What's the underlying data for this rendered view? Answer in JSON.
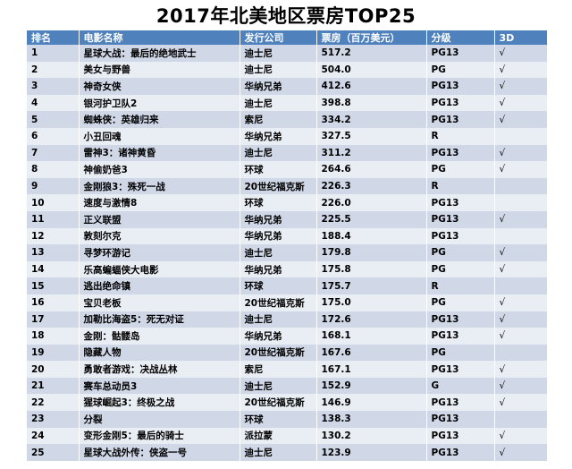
{
  "title": "2017年北美地区票房TOP25",
  "table": {
    "headers": [
      "排名",
      "电影名称",
      "发行公司",
      "票房（百万美元）",
      "分级",
      "3D"
    ],
    "rows": [
      {
        "rank": "1",
        "movie": "星球大战：最后的绝地武士",
        "distributor": "迪士尼",
        "gross": "517.2",
        "rating": "PG13",
        "three_d": "√"
      },
      {
        "rank": "2",
        "movie": "美女与野兽",
        "distributor": "迪士尼",
        "gross": "504.0",
        "rating": "PG",
        "three_d": "√"
      },
      {
        "rank": "3",
        "movie": "神奇女侠",
        "distributor": "华纳兄弟",
        "gross": "412.6",
        "rating": "PG13",
        "three_d": "√"
      },
      {
        "rank": "4",
        "movie": "银河护卫队2",
        "distributor": "迪士尼",
        "gross": "398.8",
        "rating": "PG13",
        "three_d": "√"
      },
      {
        "rank": "5",
        "movie": "蜘蛛侠：英雄归来",
        "distributor": "索尼",
        "gross": "334.2",
        "rating": "PG13",
        "three_d": "√"
      },
      {
        "rank": "6",
        "movie": "小丑回魂",
        "distributor": "华纳兄弟",
        "gross": "327.5",
        "rating": "R",
        "three_d": ""
      },
      {
        "rank": "7",
        "movie": "雷神3：诸神黄昏",
        "distributor": "迪士尼",
        "gross": "311.2",
        "rating": "PG13",
        "three_d": "√"
      },
      {
        "rank": "8",
        "movie": "神偷奶爸3",
        "distributor": "环球",
        "gross": "264.6",
        "rating": "PG",
        "three_d": "√"
      },
      {
        "rank": "9",
        "movie": "金刚狼3：殊死一战",
        "distributor": "20世纪福克斯",
        "gross": "226.3",
        "rating": "R",
        "three_d": ""
      },
      {
        "rank": "10",
        "movie": "速度与激情8",
        "distributor": "环球",
        "gross": "226.0",
        "rating": "PG13",
        "three_d": ""
      },
      {
        "rank": "11",
        "movie": "正义联盟",
        "distributor": "华纳兄弟",
        "gross": "225.5",
        "rating": "PG13",
        "three_d": "√"
      },
      {
        "rank": "12",
        "movie": "敦刻尔克",
        "distributor": "华纳兄弟",
        "gross": "188.4",
        "rating": "PG13",
        "three_d": ""
      },
      {
        "rank": "13",
        "movie": "寻梦环游记",
        "distributor": "迪士尼",
        "gross": "179.8",
        "rating": "PG",
        "three_d": "√"
      },
      {
        "rank": "14",
        "movie": "乐高蝙蝠侠大电影",
        "distributor": "华纳兄弟",
        "gross": "175.8",
        "rating": "PG",
        "three_d": "√"
      },
      {
        "rank": "15",
        "movie": "逃出绝命镇",
        "distributor": "环球",
        "gross": "175.7",
        "rating": "R",
        "three_d": ""
      },
      {
        "rank": "16",
        "movie": "宝贝老板",
        "distributor": "20世纪福克斯",
        "gross": "175.0",
        "rating": "PG",
        "three_d": "√"
      },
      {
        "rank": "17",
        "movie": "加勒比海盗5：死无对证",
        "distributor": "迪士尼",
        "gross": "172.6",
        "rating": "PG13",
        "three_d": "√"
      },
      {
        "rank": "18",
        "movie": "金刚：骷髅岛",
        "distributor": "华纳兄弟",
        "gross": "168.1",
        "rating": "PG13",
        "three_d": "√"
      },
      {
        "rank": "19",
        "movie": "隐藏人物",
        "distributor": "20世纪福克斯",
        "gross": "167.6",
        "rating": "PG",
        "three_d": ""
      },
      {
        "rank": "20",
        "movie": "勇敢者游戏：决战丛林",
        "distributor": "索尼",
        "gross": "167.1",
        "rating": "PG13",
        "three_d": "√"
      },
      {
        "rank": "21",
        "movie": "赛车总动员3",
        "distributor": "迪士尼",
        "gross": "152.9",
        "rating": "G",
        "three_d": "√"
      },
      {
        "rank": "22",
        "movie": "猩球崛起3：终极之战",
        "distributor": "20世纪福克斯",
        "gross": "146.9",
        "rating": "PG13",
        "three_d": "√"
      },
      {
        "rank": "23",
        "movie": "分裂",
        "distributor": "环球",
        "gross": "138.3",
        "rating": "PG13",
        "three_d": ""
      },
      {
        "rank": "24",
        "movie": "变形金刚5：最后的骑士",
        "distributor": "派拉蒙",
        "gross": "130.2",
        "rating": "PG13",
        "three_d": "√"
      },
      {
        "rank": "25",
        "movie": "星球大战外传：侠盗一号",
        "distributor": "迪士尼",
        "gross": "123.9",
        "rating": "PG13",
        "three_d": "√"
      }
    ]
  },
  "colors": {
    "header_bg": "#4f81bd",
    "row_odd": "#d0d8e8",
    "row_even": "#e9edf4"
  }
}
